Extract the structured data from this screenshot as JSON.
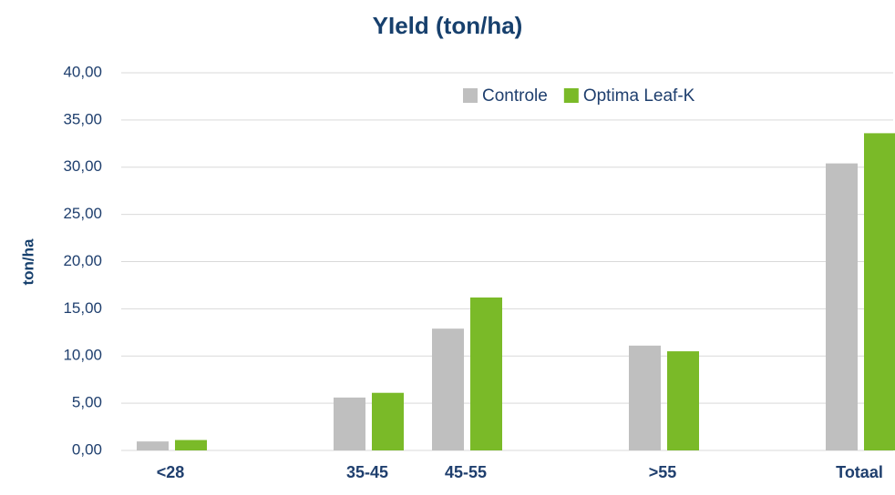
{
  "chart_data": {
    "type": "bar",
    "title": "YIeld (ton/ha)",
    "y_label": "ton/ha",
    "categories": [
      "<28",
      null,
      "35-45",
      "45-55",
      null,
      ">55",
      null,
      "Totaal"
    ],
    "series": [
      {
        "name": "Controle",
        "color": "#bfbfbf",
        "values": [
          0.95,
          null,
          5.6,
          12.9,
          null,
          11.1,
          null,
          30.4
        ]
      },
      {
        "name": "Optima Leaf-K",
        "color": "#7aba28",
        "values": [
          1.1,
          null,
          6.1,
          16.2,
          null,
          10.5,
          null,
          33.6
        ]
      }
    ],
    "ylim": [
      0,
      40
    ],
    "yticks": [
      {
        "value": 0,
        "label": "0,00"
      },
      {
        "value": 5,
        "label": "5,00"
      },
      {
        "value": 10,
        "label": "10,00"
      },
      {
        "value": 15,
        "label": "15,00"
      },
      {
        "value": 20,
        "label": "20,00"
      },
      {
        "value": 25,
        "label": "25,00"
      },
      {
        "value": 30,
        "label": "30,00"
      },
      {
        "value": 35,
        "label": "35,00"
      },
      {
        "value": 40,
        "label": "40,00"
      }
    ],
    "grid": true,
    "legend": "top-right"
  }
}
